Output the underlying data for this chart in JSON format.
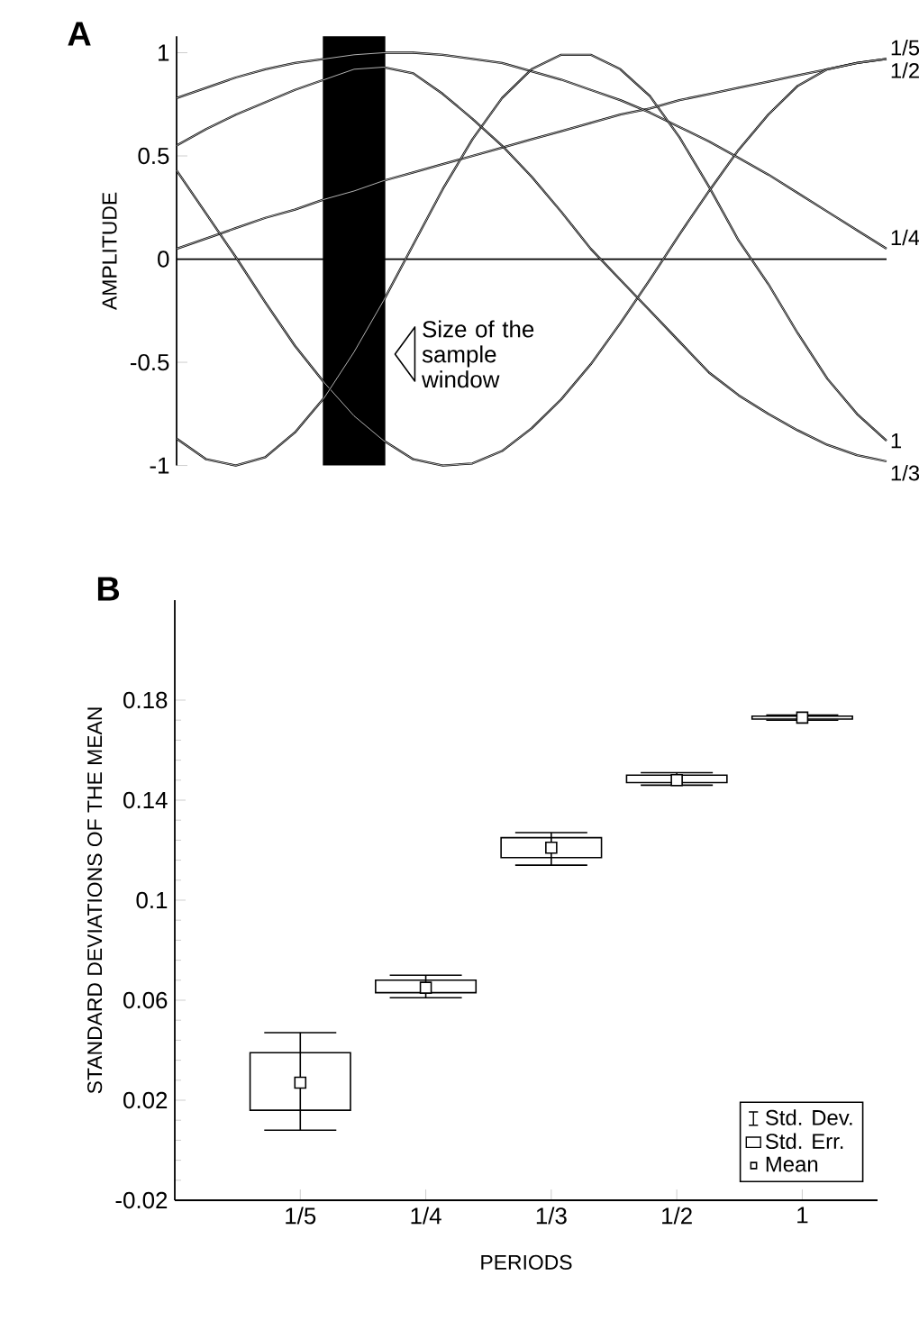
{
  "chart_data": [
    {
      "type": "line",
      "title": "A",
      "ylabel": "AMPLITUDE",
      "categories": [
        null,
        null,
        null,
        null,
        null,
        null,
        null,
        null,
        null,
        null,
        null,
        null,
        null,
        null,
        null,
        null,
        null,
        null,
        null,
        null,
        null,
        null,
        null,
        null,
        null
      ],
      "ylim": [
        -1,
        1.08
      ],
      "yticks": [
        -1,
        -0.5,
        0,
        0.5,
        1
      ],
      "series": [
        {
          "name": "1/5",
          "color": "#000000",
          "values": [
            0.05,
            0.1,
            0.15,
            0.2,
            0.24,
            0.29,
            0.33,
            0.38,
            0.42,
            0.46,
            0.5,
            0.54,
            0.58,
            0.62,
            0.66,
            0.7,
            0.73,
            0.77,
            0.8,
            0.83,
            0.86,
            0.89,
            0.92,
            0.95,
            0.97
          ]
        },
        {
          "name": "1/2",
          "color": "#000000",
          "values": [
            0.43,
            0.22,
            0.01,
            -0.21,
            -0.42,
            -0.6,
            -0.76,
            -0.88,
            -0.97,
            -1.0,
            -0.99,
            -0.93,
            -0.82,
            -0.68,
            -0.51,
            -0.31,
            -0.1,
            0.12,
            0.33,
            0.53,
            0.7,
            0.84,
            0.92,
            0.95,
            0.97
          ]
        },
        {
          "name": "1/4",
          "color": "#000000",
          "values": [
            0.78,
            0.83,
            0.88,
            0.92,
            0.95,
            0.97,
            0.99,
            1.0,
            1.0,
            0.99,
            0.97,
            0.95,
            0.91,
            0.87,
            0.82,
            0.77,
            0.71,
            0.64,
            0.57,
            0.49,
            0.41,
            0.32,
            0.23,
            0.14,
            0.05
          ]
        },
        {
          "name": "1",
          "color": "#000000",
          "values": [
            -0.87,
            -0.97,
            -1.0,
            -0.96,
            -0.84,
            -0.67,
            -0.45,
            -0.2,
            0.07,
            0.34,
            0.58,
            0.78,
            0.92,
            0.99,
            0.99,
            0.92,
            0.79,
            0.59,
            0.35,
            0.09,
            -0.12,
            -0.36,
            -0.58,
            -0.75,
            -0.88
          ]
        },
        {
          "name": "1/3",
          "color": "#000000",
          "values": [
            0.55,
            0.63,
            0.7,
            0.76,
            0.82,
            0.87,
            0.92,
            0.93,
            0.9,
            0.8,
            0.68,
            0.55,
            0.4,
            0.23,
            0.05,
            -0.1,
            -0.25,
            -0.4,
            -0.55,
            -0.66,
            -0.75,
            -0.83,
            -0.9,
            -0.95,
            -0.98
          ]
        }
      ],
      "annotations": [
        "Size of the sample window"
      ],
      "ref_lines": [
        {
          "axis": "y",
          "value": 0
        }
      ]
    },
    {
      "type": "bar",
      "title": "B",
      "xlabel": "PERIODS",
      "ylabel": "STANDARD DEVIATIONS OF THE MEAN",
      "categories": [
        "1/5",
        "1/4",
        "1/3",
        "1/2",
        "1"
      ],
      "ylim": [
        -0.02,
        0.22
      ],
      "yticks": [
        -0.02,
        0.02,
        0.06,
        0.1,
        0.14,
        0.18
      ],
      "legend": "bottom right",
      "annotations": [
        "Std. Dev."
      ],
      "series": [
        {
          "name": "Std. Err.",
          "type": "bar",
          "color": "#ffffff",
          "base": [
            0.016,
            0.063,
            0.117,
            0.147,
            0.1724
          ],
          "values": [
            0.023,
            0.005,
            0.008,
            0.003,
            0.0012
          ]
        },
        {
          "name": "Mean",
          "type": "scatter",
          "marker": "square",
          "color": "#000000",
          "values": [
            0.027,
            0.065,
            0.121,
            0.148,
            0.173
          ],
          "errors": [
            [
              0.008,
              0.047
            ],
            [
              0.061,
              0.07
            ],
            [
              0.114,
              0.127
            ],
            [
              0.146,
              0.151
            ],
            [
              0.172,
              0.174
            ]
          ]
        }
      ]
    }
  ]
}
